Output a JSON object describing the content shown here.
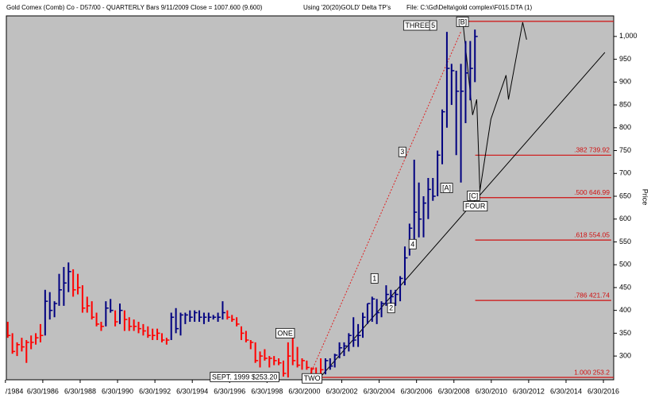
{
  "chart_data": {
    "type": "ohlc",
    "header": [
      "Gold Comex (Comb) Co - D57/00 - QUARTERLY Bars  9/11/2009 Close = 1007.600 (9.600)",
      "Using '20(20)GOLD' Delta TP's",
      "File: C:\\Gd\\Delta\\gold complex\\F015.DTA (1)"
    ],
    "y_label": "Price",
    "xlim": [
      1984.55,
      2017.05
    ],
    "ylim": [
      248,
      1045
    ],
    "yticks": [
      {
        "value": 1000,
        "label": "1,000"
      },
      950,
      900,
      850,
      800,
      750,
      700,
      650,
      600,
      550,
      500,
      450,
      400,
      350,
      300
    ],
    "xticks": [
      {
        "value": 1984.5,
        "label": "/1984"
      },
      {
        "value": 1986.5,
        "label": "6/30/1986"
      },
      {
        "value": 1988.5,
        "label": "6/30/1988"
      },
      {
        "value": 1990.5,
        "label": "6/30/1990"
      },
      {
        "value": 1992.5,
        "label": "6/30/1992"
      },
      {
        "value": 1994.5,
        "label": "6/30/1994"
      },
      {
        "value": 1996.5,
        "label": "6/30/1996"
      },
      {
        "value": 1998.5,
        "label": "6/30/1998"
      },
      {
        "value": 2000.5,
        "label": "6/30/2000"
      },
      {
        "value": 2002.5,
        "label": "6/30/2002"
      },
      {
        "value": 2004.5,
        "label": "6/30/2004"
      },
      {
        "value": 2006.5,
        "label": "6/30/2006"
      },
      {
        "value": 2008.5,
        "label": "6/30/2008"
      },
      {
        "value": 2010.5,
        "label": "6/30/2010"
      },
      {
        "value": 2012.5,
        "label": "6/30/2012"
      },
      {
        "value": 2014.5,
        "label": "6/30/2014"
      },
      {
        "value": 2016.5,
        "label": "6/30/2016"
      }
    ],
    "x": [
      1984.625,
      1984.875,
      1985.125,
      1985.375,
      1985.625,
      1985.875,
      1986.125,
      1986.375,
      1986.625,
      1986.875,
      1987.125,
      1987.375,
      1987.625,
      1987.875,
      1988.125,
      1988.375,
      1988.625,
      1988.875,
      1989.125,
      1989.375,
      1989.625,
      1989.875,
      1990.125,
      1990.375,
      1990.625,
      1990.875,
      1991.125,
      1991.375,
      1991.625,
      1991.875,
      1992.125,
      1992.375,
      1992.625,
      1992.875,
      1993.125,
      1993.375,
      1993.625,
      1993.875,
      1994.125,
      1994.375,
      1994.625,
      1994.875,
      1995.125,
      1995.375,
      1995.625,
      1995.875,
      1996.125,
      1996.375,
      1996.625,
      1996.875,
      1997.125,
      1997.375,
      1997.625,
      1997.875,
      1998.125,
      1998.375,
      1998.625,
      1998.875,
      1999.125,
      1999.375,
      1999.625,
      1999.875,
      2000.125,
      2000.375,
      2000.625,
      2000.875,
      2001.125,
      2001.375,
      2001.625,
      2001.875,
      2002.125,
      2002.375,
      2002.625,
      2002.875,
      2003.125,
      2003.375,
      2003.625,
      2003.875,
      2004.125,
      2004.375,
      2004.625,
      2004.875,
      2005.125,
      2005.375,
      2005.625,
      2005.875,
      2006.125,
      2006.375,
      2006.625,
      2006.875,
      2007.125,
      2007.375,
      2007.625,
      2007.875,
      2008.125,
      2008.375,
      2008.625,
      2008.875,
      2009.125,
      2009.375,
      2009.625
    ],
    "high": [
      375,
      350,
      330,
      340,
      335,
      345,
      350,
      370,
      445,
      440,
      420,
      480,
      495,
      505,
      490,
      480,
      455,
      430,
      420,
      395,
      375,
      420,
      425,
      400,
      415,
      400,
      385,
      380,
      375,
      370,
      365,
      360,
      360,
      350,
      340,
      395,
      405,
      395,
      395,
      400,
      400,
      400,
      395,
      395,
      390,
      395,
      420,
      400,
      390,
      385,
      365,
      355,
      335,
      330,
      310,
      315,
      300,
      300,
      295,
      290,
      330,
      340,
      320,
      295,
      290,
      275,
      275,
      295,
      295,
      295,
      305,
      330,
      330,
      350,
      385,
      370,
      395,
      415,
      430,
      425,
      420,
      455,
      445,
      445,
      475,
      540,
      590,
      730,
      680,
      650,
      690,
      690,
      750,
      840,
      1010,
      940,
      925,
      940,
      990,
      990,
      1015
    ],
    "low": [
      340,
      305,
      300,
      310,
      285,
      315,
      325,
      330,
      345,
      380,
      385,
      410,
      410,
      440,
      430,
      435,
      395,
      395,
      380,
      365,
      355,
      365,
      395,
      365,
      370,
      355,
      355,
      355,
      350,
      345,
      340,
      335,
      335,
      330,
      325,
      335,
      350,
      345,
      370,
      375,
      375,
      375,
      370,
      375,
      380,
      375,
      380,
      380,
      375,
      365,
      335,
      330,
      315,
      285,
      275,
      290,
      275,
      280,
      280,
      255,
      253,
      280,
      275,
      270,
      270,
      262,
      255,
      255,
      260,
      270,
      275,
      295,
      300,
      310,
      320,
      320,
      340,
      370,
      375,
      370,
      385,
      410,
      410,
      410,
      420,
      455,
      520,
      540,
      560,
      560,
      600,
      640,
      650,
      720,
      800,
      850,
      740,
      680,
      810,
      860,
      900
    ],
    "close": [
      345,
      310,
      325,
      320,
      330,
      330,
      340,
      345,
      420,
      400,
      415,
      445,
      460,
      485,
      445,
      450,
      405,
      410,
      385,
      370,
      365,
      405,
      400,
      375,
      400,
      380,
      365,
      365,
      360,
      355,
      345,
      345,
      350,
      335,
      335,
      385,
      360,
      390,
      390,
      385,
      395,
      385,
      385,
      385,
      385,
      385,
      395,
      385,
      380,
      370,
      350,
      335,
      330,
      290,
      300,
      295,
      295,
      290,
      285,
      262,
      300,
      290,
      280,
      290,
      275,
      272,
      258,
      270,
      290,
      278,
      302,
      318,
      322,
      345,
      335,
      345,
      385,
      415,
      425,
      395,
      415,
      435,
      430,
      435,
      470,
      515,
      580,
      615,
      600,
      635,
      665,
      650,
      740,
      835,
      930,
      925,
      880,
      880,
      920,
      930,
      1000
    ],
    "bar_colors": [
      "red",
      "red",
      "red",
      "red",
      "red",
      "red",
      "red",
      "red",
      "navy",
      "navy",
      "navy",
      "navy",
      "navy",
      "navy",
      "red",
      "red",
      "red",
      "red",
      "red",
      "red",
      "red",
      "navy",
      "navy",
      "red",
      "navy",
      "red",
      "red",
      "red",
      "red",
      "red",
      "red",
      "red",
      "red",
      "red",
      "red",
      "navy",
      "navy",
      "navy",
      "navy",
      "navy",
      "navy",
      "navy",
      "navy",
      "navy",
      "navy",
      "navy",
      "navy",
      "red",
      "red",
      "red",
      "red",
      "red",
      "red",
      "red",
      "red",
      "red",
      "red",
      "red",
      "red",
      "red",
      "red",
      "red",
      "red",
      "red",
      "red",
      "red",
      "red",
      "red",
      "navy",
      "navy",
      "navy",
      "navy",
      "navy",
      "navy",
      "navy",
      "navy",
      "navy",
      "navy",
      "navy",
      "navy",
      "navy",
      "navy",
      "navy",
      "navy",
      "navy",
      "navy",
      "navy",
      "navy",
      "navy",
      "navy",
      "navy",
      "navy",
      "navy",
      "navy",
      "navy",
      "navy",
      "navy",
      "navy",
      "navy",
      "navy",
      "navy"
    ],
    "fib_lines": [
      {
        "value": 739.92,
        "label": ".382  739.92",
        "x": [
          2009.64,
          2016.92
        ]
      },
      {
        "value": 646.99,
        "label": ".500  646.99",
        "x": [
          2009.64,
          2016.92
        ]
      },
      {
        "value": 554.05,
        "label": ".618  554.05",
        "x": [
          2009.64,
          2016.92
        ]
      },
      {
        "value": 421.74,
        "label": ".786  421.74",
        "x": [
          2009.64,
          2016.92
        ]
      },
      {
        "value": 253.2,
        "label": "1.000  253.2",
        "x": [
          2000.82,
          2017.05
        ]
      }
    ],
    "top_line": {
      "value": 1033,
      "x": [
        2008.66,
        2017.05
      ]
    },
    "trendline": {
      "x": [
        2001.25,
        2016.58
      ],
      "y": [
        249,
        965
      ]
    },
    "fan_line": {
      "x": [
        2000.82,
        2008.87
      ],
      "y": [
        261,
        1010
      ]
    },
    "projection": {
      "x": [
        2008.99,
        2009.5,
        2009.72,
        2009.89,
        2010.48,
        2011.29,
        2011.42,
        2012.18,
        2012.39
      ],
      "y": [
        1028,
        828,
        862,
        662,
        819,
        915,
        862,
        1031,
        993
      ]
    },
    "annotations": [
      {
        "text": "THREE",
        "x": 2006.54,
        "y": 1023
      },
      {
        "text": "5",
        "x": 2007.39,
        "y": 1023
      },
      {
        "text": "[B]",
        "x": 2008.96,
        "y": 1031
      },
      {
        "text": "3",
        "x": 2005.74,
        "y": 746
      },
      {
        "text": "[A]",
        "x": 2008.11,
        "y": 667
      },
      {
        "text": "[C]",
        "x": 2009.55,
        "y": 650
      },
      {
        "text": "FOUR",
        "x": 2009.64,
        "y": 627
      },
      {
        "text": "4",
        "x": 2006.29,
        "y": 544
      },
      {
        "text": "1",
        "x": 2004.25,
        "y": 469
      },
      {
        "text": "2",
        "x": 2005.14,
        "y": 404
      },
      {
        "text": "ONE",
        "x": 1999.47,
        "y": 349
      },
      {
        "text": "TWO",
        "x": 2000.91,
        "y": 250
      },
      {
        "text": "SEPT. 1999  $253.20",
        "x": 1997.3,
        "y": 253
      }
    ]
  }
}
